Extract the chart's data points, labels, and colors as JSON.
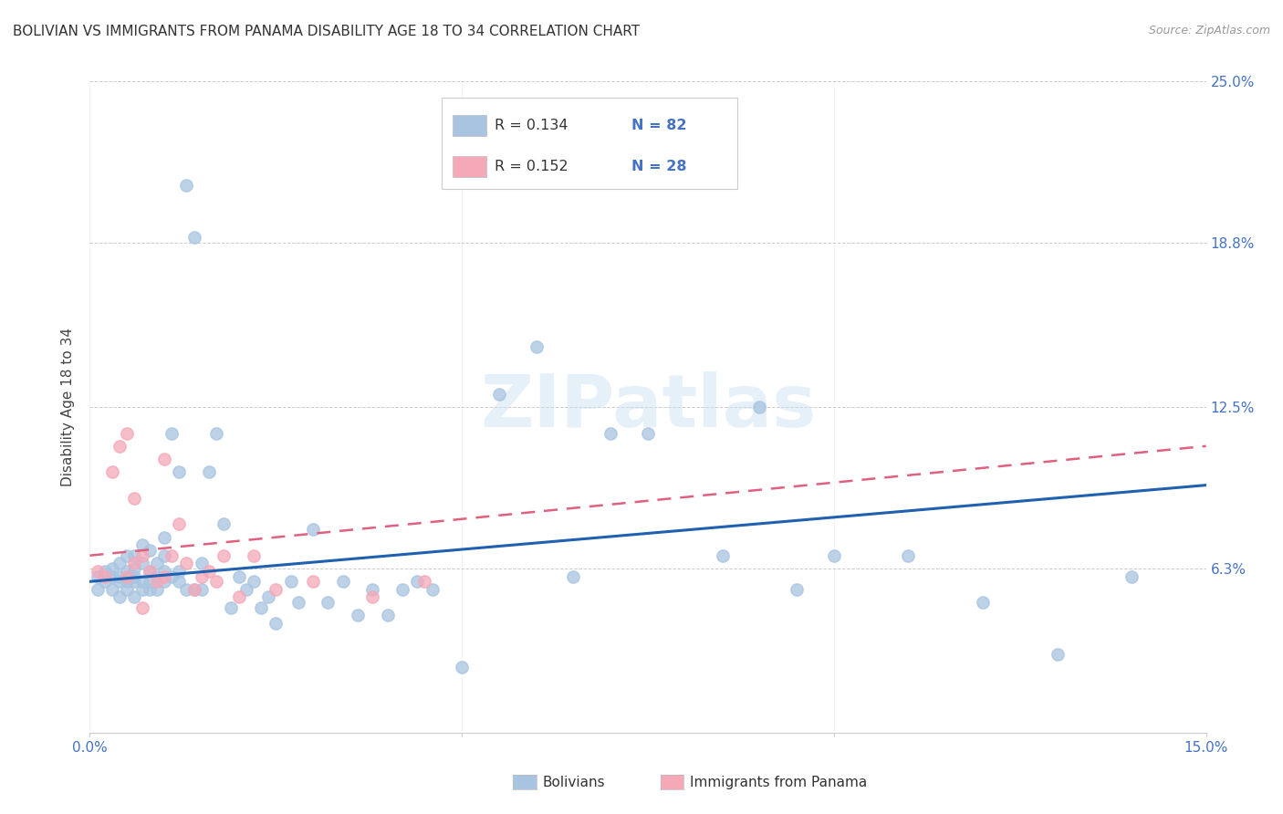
{
  "title": "BOLIVIAN VS IMMIGRANTS FROM PANAMA DISABILITY AGE 18 TO 34 CORRELATION CHART",
  "source": "Source: ZipAtlas.com",
  "ylabel": "Disability Age 18 to 34",
  "xlim": [
    0.0,
    0.15
  ],
  "ylim": [
    0.0,
    0.25
  ],
  "yticks": [
    0.0,
    0.063,
    0.125,
    0.188,
    0.25
  ],
  "yticklabels": [
    "",
    "6.3%",
    "12.5%",
    "18.8%",
    "25.0%"
  ],
  "bolivia_color": "#a8c4e0",
  "panama_color": "#f4a8b8",
  "bolivia_line_color": "#2060b0",
  "panama_line_color": "#e06080",
  "legend_R1": "R = 0.134",
  "legend_N1": "N = 82",
  "legend_R2": "R = 0.152",
  "legend_N2": "N = 28",
  "watermark": "ZIPatlas",
  "bolivia_scatter_x": [
    0.001,
    0.001,
    0.002,
    0.002,
    0.003,
    0.003,
    0.003,
    0.004,
    0.004,
    0.004,
    0.004,
    0.005,
    0.005,
    0.005,
    0.005,
    0.005,
    0.006,
    0.006,
    0.006,
    0.006,
    0.006,
    0.007,
    0.007,
    0.007,
    0.007,
    0.008,
    0.008,
    0.008,
    0.008,
    0.009,
    0.009,
    0.009,
    0.01,
    0.01,
    0.01,
    0.01,
    0.011,
    0.011,
    0.012,
    0.012,
    0.012,
    0.013,
    0.013,
    0.014,
    0.014,
    0.015,
    0.015,
    0.016,
    0.017,
    0.018,
    0.019,
    0.02,
    0.021,
    0.022,
    0.023,
    0.024,
    0.025,
    0.027,
    0.028,
    0.03,
    0.032,
    0.034,
    0.036,
    0.038,
    0.04,
    0.042,
    0.044,
    0.046,
    0.05,
    0.055,
    0.06,
    0.065,
    0.07,
    0.075,
    0.085,
    0.09,
    0.095,
    0.1,
    0.11,
    0.12,
    0.13,
    0.14
  ],
  "bolivia_scatter_y": [
    0.06,
    0.055,
    0.062,
    0.058,
    0.06,
    0.063,
    0.055,
    0.06,
    0.058,
    0.065,
    0.052,
    0.058,
    0.062,
    0.068,
    0.06,
    0.055,
    0.058,
    0.06,
    0.063,
    0.068,
    0.052,
    0.055,
    0.058,
    0.065,
    0.072,
    0.055,
    0.058,
    0.062,
    0.07,
    0.055,
    0.06,
    0.065,
    0.058,
    0.062,
    0.068,
    0.075,
    0.06,
    0.115,
    0.058,
    0.062,
    0.1,
    0.055,
    0.21,
    0.055,
    0.19,
    0.055,
    0.065,
    0.1,
    0.115,
    0.08,
    0.048,
    0.06,
    0.055,
    0.058,
    0.048,
    0.052,
    0.042,
    0.058,
    0.05,
    0.078,
    0.05,
    0.058,
    0.045,
    0.055,
    0.045,
    0.055,
    0.058,
    0.055,
    0.025,
    0.13,
    0.148,
    0.06,
    0.115,
    0.115,
    0.068,
    0.125,
    0.055,
    0.068,
    0.068,
    0.05,
    0.03,
    0.06
  ],
  "panama_scatter_x": [
    0.001,
    0.002,
    0.003,
    0.004,
    0.005,
    0.005,
    0.006,
    0.006,
    0.007,
    0.007,
    0.008,
    0.009,
    0.01,
    0.01,
    0.011,
    0.012,
    0.013,
    0.014,
    0.015,
    0.016,
    0.017,
    0.018,
    0.02,
    0.022,
    0.025,
    0.03,
    0.038,
    0.045
  ],
  "panama_scatter_y": [
    0.062,
    0.06,
    0.1,
    0.11,
    0.06,
    0.115,
    0.065,
    0.09,
    0.048,
    0.068,
    0.062,
    0.058,
    0.105,
    0.06,
    0.068,
    0.08,
    0.065,
    0.055,
    0.06,
    0.062,
    0.058,
    0.068,
    0.052,
    0.068,
    0.055,
    0.058,
    0.052,
    0.058
  ],
  "bolivia_trend_x": [
    0.0,
    0.15
  ],
  "bolivia_trend_y": [
    0.058,
    0.095
  ],
  "panama_trend_x": [
    0.0,
    0.15
  ],
  "panama_trend_y": [
    0.068,
    0.11
  ],
  "background_color": "#ffffff",
  "grid_color": "#cccccc",
  "title_color": "#333333"
}
